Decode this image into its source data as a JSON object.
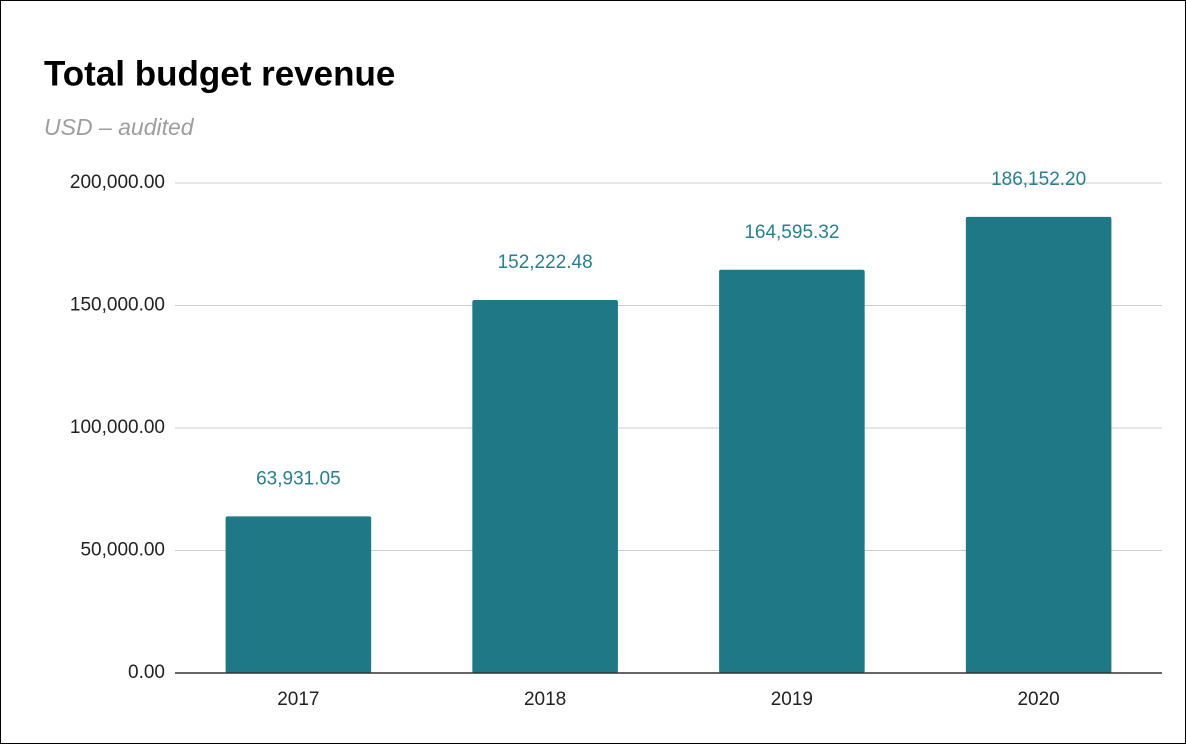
{
  "chart_data": {
    "type": "bar",
    "title": "Total budget revenue",
    "subtitle": "USD – audited",
    "categories": [
      "2017",
      "2018",
      "2019",
      "2020"
    ],
    "values": [
      63931.05,
      152222.48,
      164595.32,
      186152.2
    ],
    "value_labels": [
      "63,931.05",
      "152,222.48",
      "164,595.32",
      "186,152.20"
    ],
    "color": "#1f7886",
    "ylim": [
      0,
      200000
    ],
    "yticks": [
      {
        "value": 0,
        "label": "0.00"
      },
      {
        "value": 50000,
        "label": "50,000.00"
      },
      {
        "value": 100000,
        "label": "100,000.00"
      },
      {
        "value": 150000,
        "label": "150,000.00"
      },
      {
        "value": 200000,
        "label": "200,000.00"
      }
    ],
    "grid": true
  }
}
